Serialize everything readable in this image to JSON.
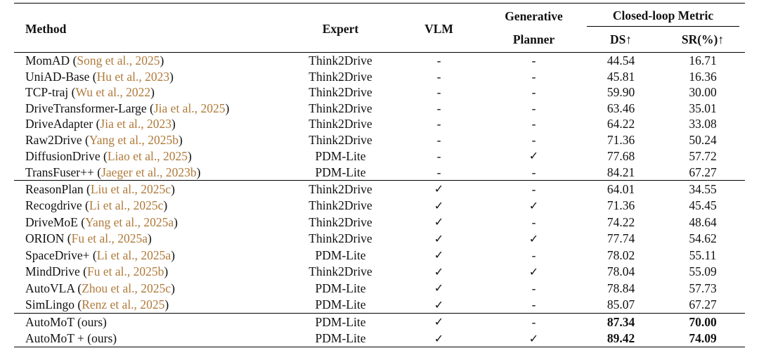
{
  "headers": {
    "method": "Method",
    "expert": "Expert",
    "vlm": "VLM",
    "generative_line1": "Generative",
    "generative_line2": "Planner",
    "closed_loop": "Closed-loop Metric",
    "ds": "DS↑",
    "sr": "SR(%)↑"
  },
  "groups": [
    {
      "rows": [
        {
          "name": "MomAD (",
          "cite_author": "Song et al., ",
          "cite_year": "2025",
          "close": ")",
          "expert": "Think2Drive",
          "vlm": "-",
          "gen": "-",
          "ds": "44.54",
          "sr": "16.71"
        },
        {
          "name": "UniAD-Base (",
          "cite_author": "Hu et al., ",
          "cite_year": "2023",
          "close": ")",
          "expert": "Think2Drive",
          "vlm": "-",
          "gen": "-",
          "ds": "45.81",
          "sr": "16.36"
        },
        {
          "name": "TCP-traj (",
          "cite_author": "Wu et al., ",
          "cite_year": "2022",
          "close": ")",
          "expert": "Think2Drive",
          "vlm": "-",
          "gen": "-",
          "ds": "59.90",
          "sr": "30.00"
        },
        {
          "name": "DriveTransformer-Large (",
          "cite_author": "Jia et al., ",
          "cite_year": "2025",
          "close": ")",
          "expert": "Think2Drive",
          "vlm": "-",
          "gen": "-",
          "ds": "63.46",
          "sr": "35.01"
        },
        {
          "name": "DriveAdapter (",
          "cite_author": "Jia et al., ",
          "cite_year": "2023",
          "close": ")",
          "expert": "Think2Drive",
          "vlm": "-",
          "gen": "-",
          "ds": "64.22",
          "sr": "33.08"
        },
        {
          "name": "Raw2Drive (",
          "cite_author": "Yang et al., ",
          "cite_year": "2025b",
          "close": ")",
          "expert": "Think2Drive",
          "vlm": "-",
          "gen": "-",
          "ds": "71.36",
          "sr": "50.24"
        },
        {
          "name": "DiffusionDrive (",
          "cite_author": "Liao et al., ",
          "cite_year": "2025",
          "close": ")",
          "expert": "PDM-Lite",
          "vlm": "-",
          "gen": "✓",
          "ds": "77.68",
          "sr": "57.72"
        },
        {
          "name": "TransFuser++ (",
          "cite_author": "Jaeger et al., ",
          "cite_year": "2023b",
          "close": ")",
          "expert": "PDM-Lite",
          "vlm": "-",
          "gen": "-",
          "ds": "84.21",
          "sr": "67.27"
        }
      ]
    },
    {
      "rows": [
        {
          "name": "ReasonPlan (",
          "cite_author": "Liu et al., ",
          "cite_year": "2025c",
          "close": ")",
          "expert": "Think2Drive",
          "vlm": "✓",
          "gen": "-",
          "ds": "64.01",
          "sr": "34.55"
        },
        {
          "name": "Recogdrive (",
          "cite_author": "Li et al., ",
          "cite_year": "2025c",
          "close": ")",
          "expert": "Think2Drive",
          "vlm": "✓",
          "gen": "✓",
          "ds": "71.36",
          "sr": "45.45"
        },
        {
          "name": "DriveMoE (",
          "cite_author": "Yang et al., ",
          "cite_year": "2025a",
          "close": ")",
          "expert": "Think2Drive",
          "vlm": "✓",
          "gen": "-",
          "ds": "74.22",
          "sr": "48.64"
        },
        {
          "name": "ORION (",
          "cite_author": "Fu et al., ",
          "cite_year": "2025a",
          "close": ")",
          "expert": "Think2Drive",
          "vlm": "✓",
          "gen": "✓",
          "ds": "77.74",
          "sr": "54.62"
        },
        {
          "name": "SpaceDrive+ (",
          "cite_author": "Li et al., ",
          "cite_year": "2025a",
          "close": ")",
          "expert": "PDM-Lite",
          "vlm": "✓",
          "gen": "-",
          "ds": "78.02",
          "sr": "55.11"
        },
        {
          "name": "MindDrive (",
          "cite_author": "Fu et al., ",
          "cite_year": "2025b",
          "close": ")",
          "expert": "Think2Drive",
          "vlm": "✓",
          "gen": "✓",
          "ds": "78.04",
          "sr": "55.09"
        },
        {
          "name": "AutoVLA (",
          "cite_author": "Zhou et al., ",
          "cite_year": "2025c",
          "close": ")",
          "expert": "PDM-Lite",
          "vlm": "✓",
          "gen": "-",
          "ds": "78.84",
          "sr": "57.73"
        },
        {
          "name": "SimLingo (",
          "cite_author": "Renz et al., ",
          "cite_year": "2025",
          "close": ")",
          "expert": "PDM-Lite",
          "vlm": "✓",
          "gen": "-",
          "ds": "85.07",
          "sr": "67.27"
        }
      ]
    },
    {
      "rows": [
        {
          "name": "AutoMoT (ours)",
          "cite_author": "",
          "cite_year": "",
          "close": "",
          "expert": "PDM-Lite",
          "vlm": "✓",
          "gen": "-",
          "ds": "87.34",
          "sr": "70.00",
          "bold": true
        },
        {
          "name": "AutoMoT + (ours)",
          "cite_author": "",
          "cite_year": "",
          "close": "",
          "expert": "PDM-Lite",
          "vlm": "✓",
          "gen": "✓",
          "ds": "89.42",
          "sr": "74.09",
          "bold": true
        }
      ]
    }
  ]
}
